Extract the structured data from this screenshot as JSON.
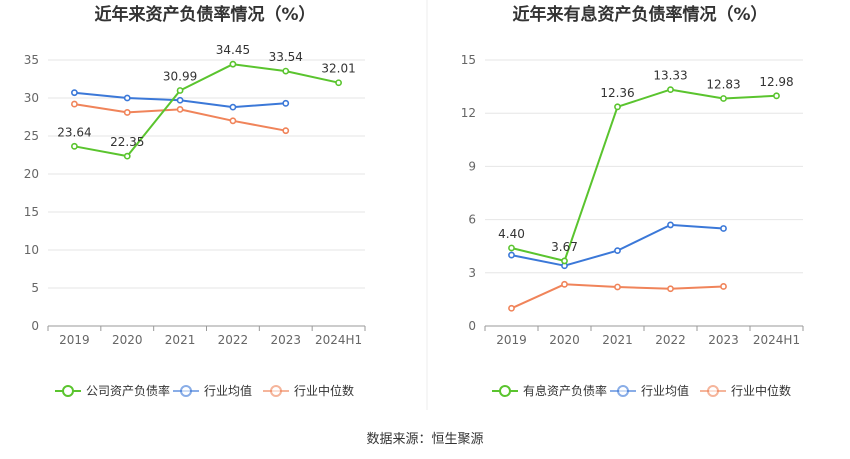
{
  "source": "数据来源：恒生聚源",
  "chart_data": [
    {
      "type": "line",
      "title": "近年来资产负债率情况（%）",
      "categories": [
        "2019",
        "2020",
        "2021",
        "2022",
        "2023",
        "2024H1"
      ],
      "ylim": [
        0,
        35
      ],
      "yticks": [
        0,
        5,
        10,
        15,
        20,
        25,
        30,
        35
      ],
      "grid": true,
      "legend_position": "bottom",
      "series": [
        {
          "name": "公司资产负债率",
          "color": "#5ac42e",
          "values": [
            23.64,
            22.35,
            30.99,
            34.45,
            33.54,
            32.01
          ],
          "labels": [
            "23.64",
            "22.35",
            "30.99",
            "34.45",
            "33.54",
            "32.01"
          ]
        },
        {
          "name": "行业均值",
          "color": "#3b78d8",
          "values": [
            30.7,
            30.0,
            29.7,
            28.8,
            29.3,
            null
          ]
        },
        {
          "name": "行业中位数",
          "color": "#f0845a",
          "values": [
            29.2,
            28.1,
            28.5,
            27.0,
            25.7,
            null
          ]
        }
      ]
    },
    {
      "type": "line",
      "title": "近年来有息资产负债率情况（%）",
      "categories": [
        "2019",
        "2020",
        "2021",
        "2022",
        "2023",
        "2024H1"
      ],
      "ylim": [
        0,
        15
      ],
      "yticks": [
        0,
        3,
        6,
        9,
        12,
        15
      ],
      "grid": true,
      "legend_position": "bottom",
      "series": [
        {
          "name": "有息资产负债率",
          "color": "#5ac42e",
          "values": [
            4.4,
            3.67,
            12.36,
            13.33,
            12.83,
            12.98
          ],
          "labels": [
            "4.40",
            "3.67",
            "12.36",
            "13.33",
            "12.83",
            "12.98"
          ]
        },
        {
          "name": "行业均值",
          "color": "#3b78d8",
          "values": [
            4.0,
            3.4,
            4.25,
            5.7,
            5.5,
            null
          ]
        },
        {
          "name": "行业中位数",
          "color": "#f0845a",
          "values": [
            1.0,
            2.35,
            2.2,
            2.1,
            2.23,
            null
          ]
        }
      ]
    }
  ]
}
